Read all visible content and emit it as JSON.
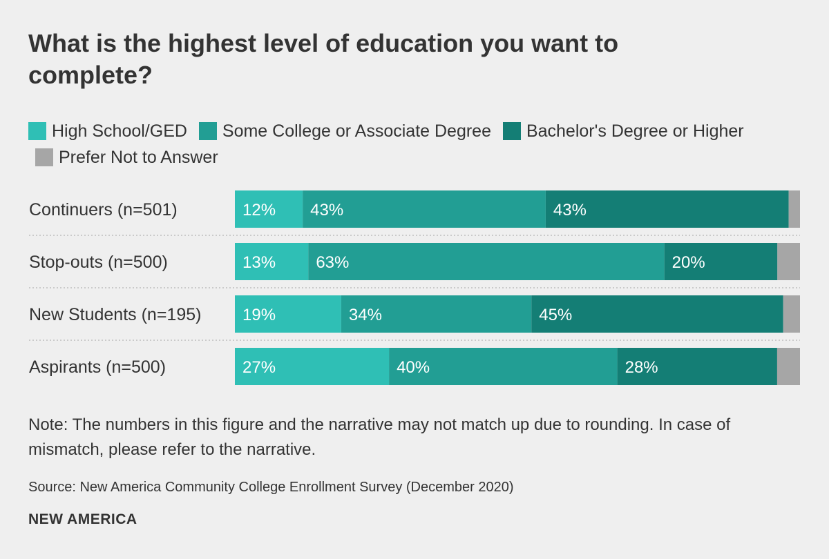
{
  "title": "What is the highest level of education you want to complete?",
  "legend": [
    {
      "label": "High School/GED",
      "color": "#2fbfb5"
    },
    {
      "label": "Some College or Associate Degree",
      "color": "#229e94"
    },
    {
      "label": "Bachelor's Degree or Higher",
      "color": "#147e75"
    },
    {
      "label": "Prefer Not to Answer",
      "color": "#a6a6a6"
    }
  ],
  "chart_data": {
    "type": "bar",
    "orientation": "horizontal",
    "stacked": true,
    "normalized": true,
    "categories": [
      "Continuers (n=501)",
      "Stop-outs (n=500)",
      "New Students (n=195)",
      "Aspirants (n=500)"
    ],
    "series": [
      {
        "name": "High School/GED",
        "color": "#2fbfb5",
        "values": [
          12,
          13,
          19,
          27
        ],
        "labels": [
          "12%",
          "13%",
          "19%",
          "27%"
        ]
      },
      {
        "name": "Some College or Associate Degree",
        "color": "#229e94",
        "values": [
          43,
          63,
          34,
          40
        ],
        "labels": [
          "43%",
          "63%",
          "34%",
          "40%"
        ]
      },
      {
        "name": "Bachelor's Degree or Higher",
        "color": "#147e75",
        "values": [
          43,
          20,
          45,
          28
        ],
        "labels": [
          "43%",
          "20%",
          "45%",
          "28%"
        ]
      },
      {
        "name": "Prefer Not to Answer",
        "color": "#a6a6a6",
        "values": [
          2,
          4,
          3,
          4
        ],
        "labels": [
          "",
          "",
          "",
          ""
        ]
      }
    ],
    "xlim": [
      0,
      100
    ]
  },
  "note": "Note: The numbers in this figure and the narrative may not match up due to rounding. In case of mismatch, please refer to the narrative.",
  "source": "Source: New America Community College Enrollment Survey (December 2020)",
  "brand": "NEW AMERICA"
}
